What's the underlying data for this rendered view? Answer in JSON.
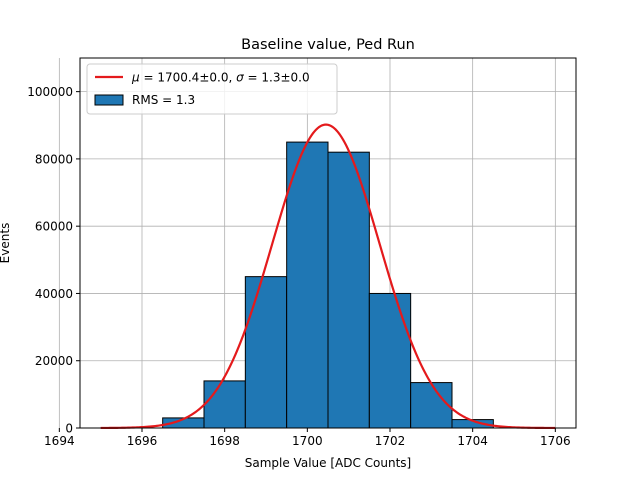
{
  "chart_data": {
    "type": "bar",
    "title": "Baseline value, Ped Run",
    "xlabel": "Sample Value [ADC Counts]",
    "ylabel": "Events",
    "xlim": [
      1694.5,
      1706.5
    ],
    "ylim": [
      0,
      110000
    ],
    "xticks": [
      1694,
      1696,
      1698,
      1700,
      1702,
      1704,
      1706
    ],
    "yticks": [
      0,
      20000,
      40000,
      60000,
      80000,
      100000
    ],
    "grid": true,
    "legend_position": "upper-left",
    "histogram": {
      "name": "RMS = 1.3",
      "color": "#1f77b4",
      "edgecolor": "#000000",
      "bins": [
        {
          "x0": 1694.5,
          "x1": 1695.5,
          "count": 0
        },
        {
          "x0": 1695.5,
          "x1": 1696.5,
          "count": 0
        },
        {
          "x0": 1696.5,
          "x1": 1697.5,
          "count": 3000
        },
        {
          "x0": 1697.5,
          "x1": 1698.5,
          "count": 14000
        },
        {
          "x0": 1698.5,
          "x1": 1699.5,
          "count": 45000
        },
        {
          "x0": 1699.5,
          "x1": 1700.5,
          "count": 85000
        },
        {
          "x0": 1700.5,
          "x1": 1701.5,
          "count": 82000
        },
        {
          "x0": 1701.5,
          "x1": 1702.5,
          "count": 40000
        },
        {
          "x0": 1702.5,
          "x1": 1703.5,
          "count": 13500
        },
        {
          "x0": 1703.5,
          "x1": 1704.5,
          "count": 2500
        }
      ]
    },
    "fit": {
      "name_prefix_mu": "μ",
      "name_mid": " = 1700.4±0.0, ",
      "name_prefix_sigma": "σ",
      "name_suffix": " = 1.3±0.0",
      "color": "#e41a1c",
      "mu": 1700.45,
      "sigma": 1.3,
      "amplitude": 90200,
      "x_range": [
        1695,
        1706
      ]
    }
  }
}
